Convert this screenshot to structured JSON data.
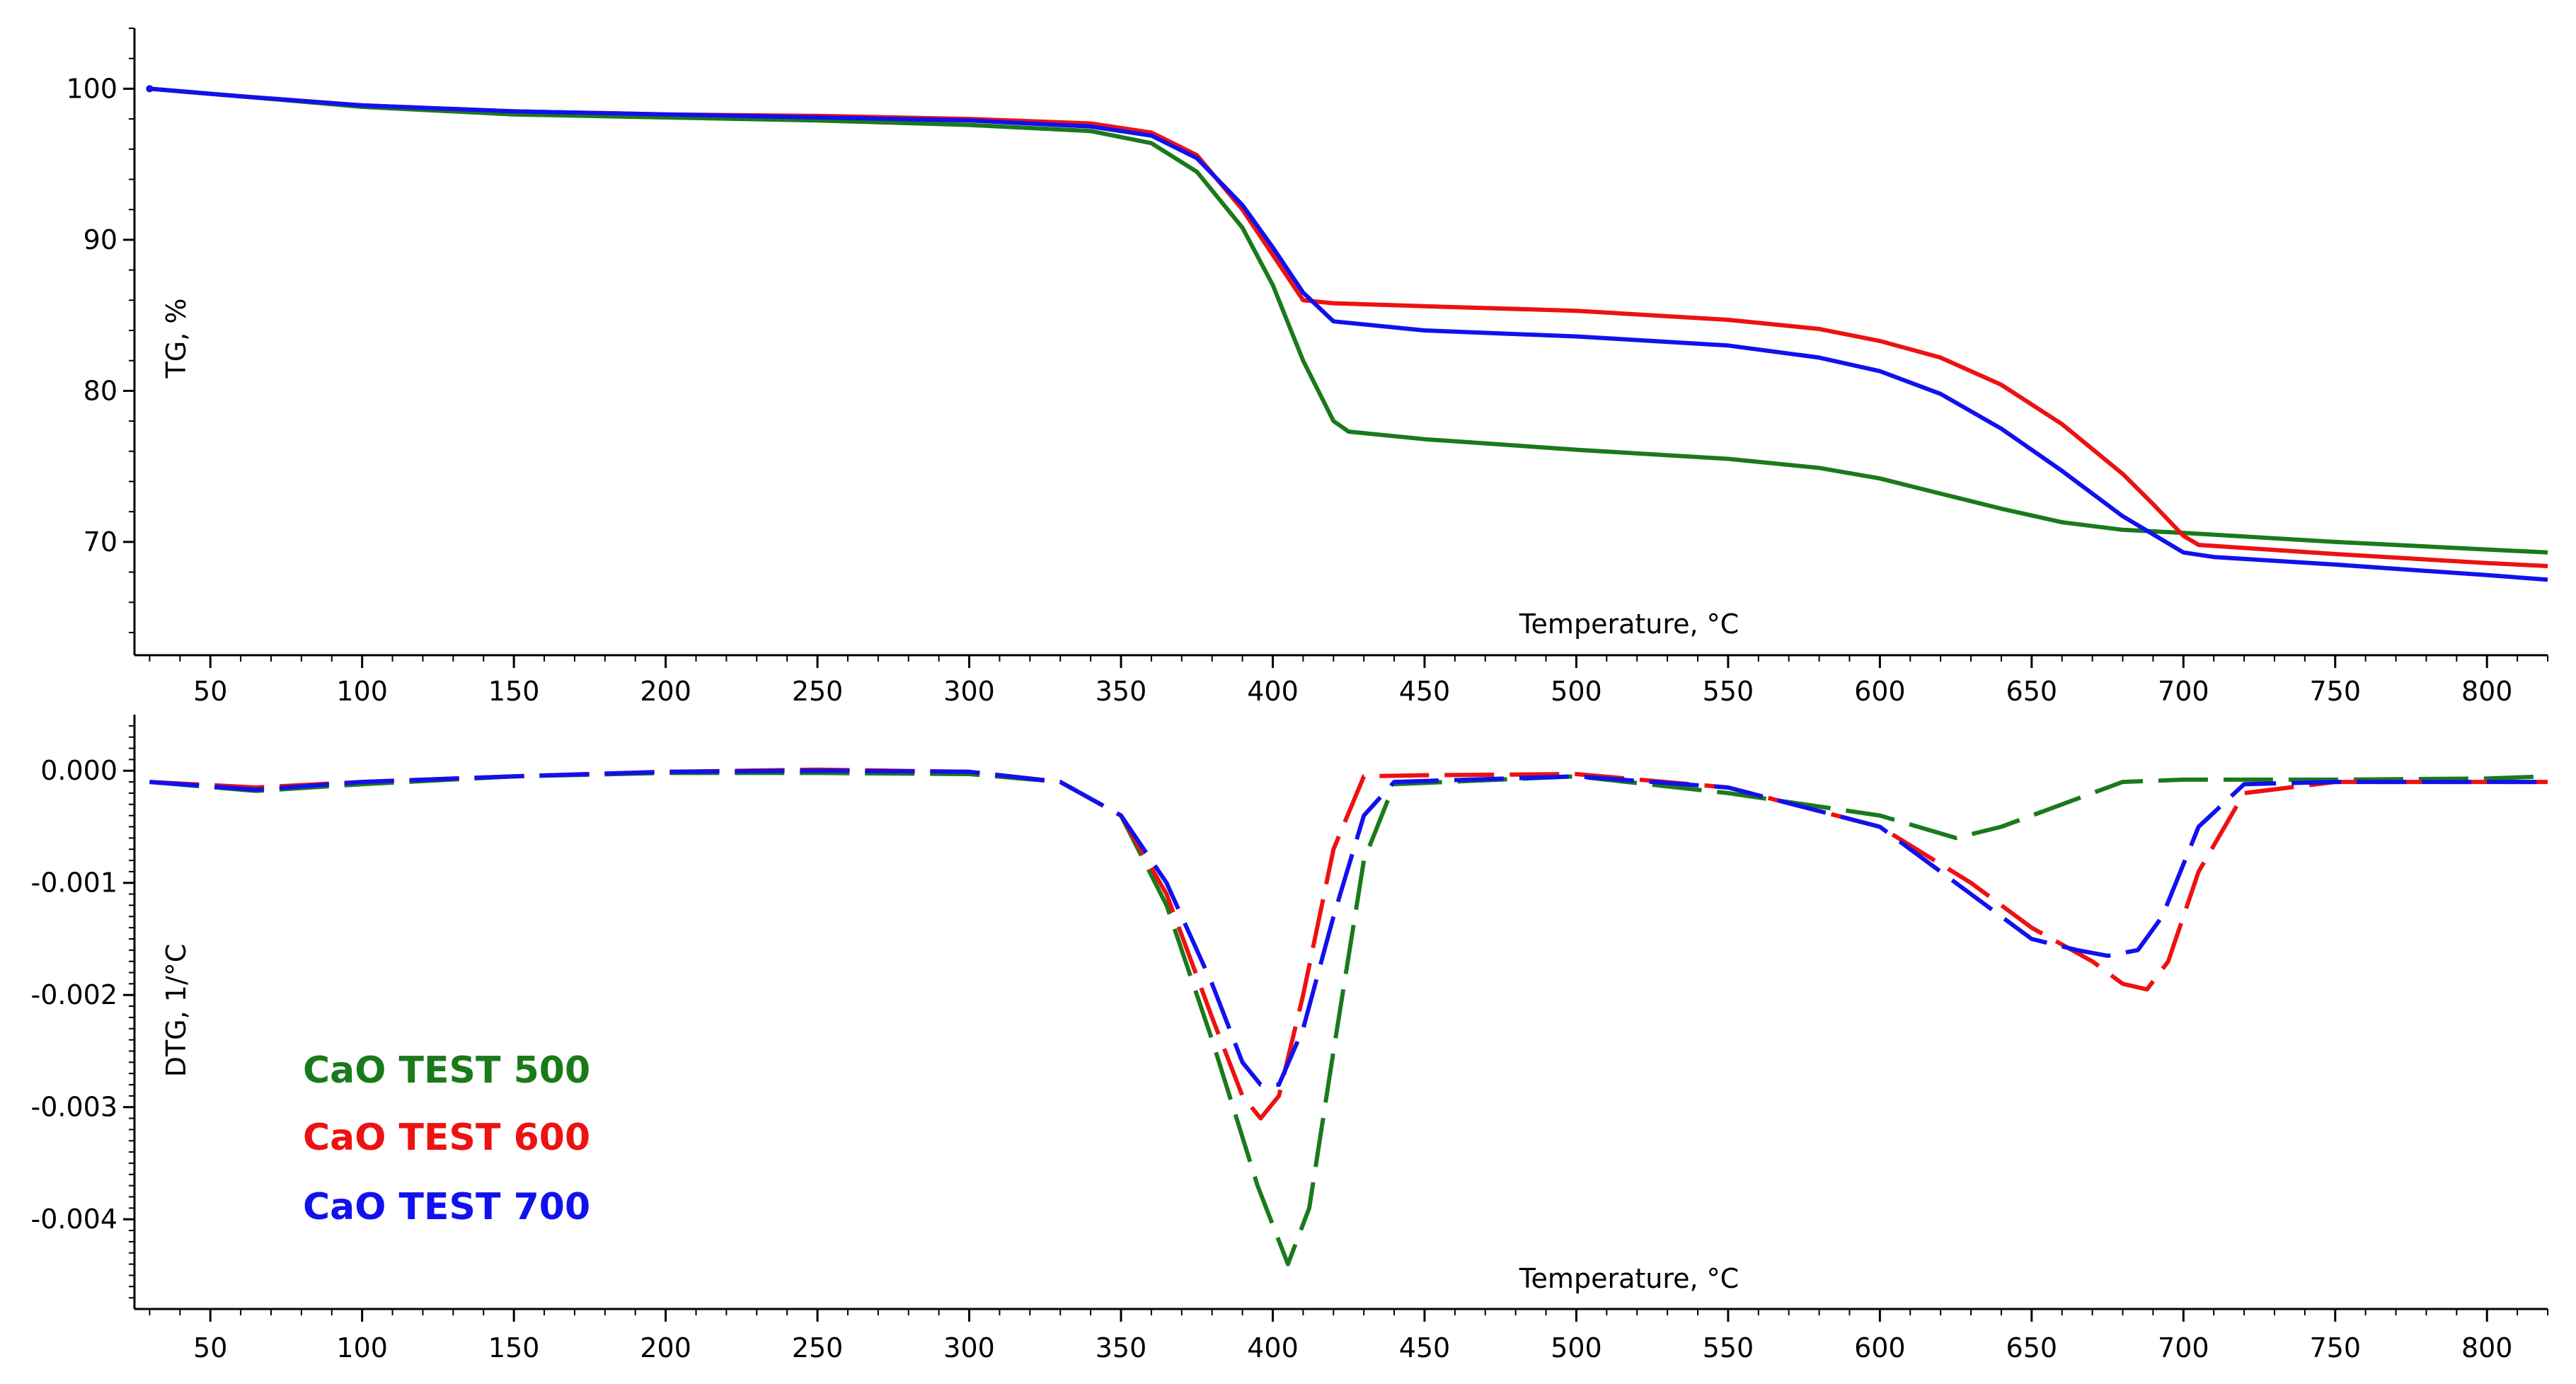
{
  "chart_data": [
    {
      "type": "line",
      "panel": "top",
      "ylabel": "TG, %",
      "xlabel": "Temperature, °C",
      "xlim": [
        25,
        820
      ],
      "ylim": [
        62.5,
        104
      ],
      "x_ticks": [
        50,
        100,
        150,
        200,
        250,
        300,
        350,
        400,
        450,
        500,
        550,
        600,
        650,
        700,
        750,
        800
      ],
      "y_ticks": [
        70,
        80,
        90,
        100
      ],
      "series": [
        {
          "name": "CaO TEST 500",
          "color": "#1a7a1a",
          "x": [
            30,
            60,
            100,
            150,
            200,
            250,
            300,
            340,
            360,
            375,
            390,
            400,
            410,
            420,
            425,
            450,
            500,
            550,
            580,
            600,
            620,
            640,
            660,
            680,
            700,
            750,
            800,
            820
          ],
          "y": [
            100,
            99.5,
            98.8,
            98.3,
            98.1,
            97.9,
            97.6,
            97.2,
            96.4,
            94.5,
            90.8,
            87,
            82,
            78,
            77.3,
            76.8,
            76.1,
            75.5,
            74.9,
            74.2,
            73.2,
            72.2,
            71.3,
            70.8,
            70.6,
            70,
            69.5,
            69.3
          ]
        },
        {
          "name": "CaO TEST 600",
          "color": "#ee1111",
          "x": [
            30,
            60,
            100,
            150,
            200,
            250,
            300,
            340,
            360,
            375,
            390,
            400,
            410,
            420,
            450,
            500,
            550,
            580,
            600,
            620,
            640,
            660,
            680,
            690,
            700,
            705,
            750,
            800,
            820
          ],
          "y": [
            100,
            99.5,
            98.9,
            98.5,
            98.3,
            98.2,
            98,
            97.7,
            97.1,
            95.6,
            92,
            89,
            86,
            85.8,
            85.6,
            85.3,
            84.7,
            84.1,
            83.3,
            82.2,
            80.4,
            77.8,
            74.5,
            72.5,
            70.4,
            69.8,
            69.2,
            68.6,
            68.4
          ]
        },
        {
          "name": "CaO TEST 700",
          "color": "#1111ee",
          "x": [
            30,
            60,
            100,
            150,
            200,
            250,
            300,
            340,
            360,
            375,
            390,
            400,
            410,
            420,
            450,
            500,
            550,
            580,
            600,
            620,
            640,
            660,
            680,
            700,
            710,
            750,
            800,
            820
          ],
          "y": [
            100,
            99.5,
            98.9,
            98.5,
            98.3,
            98.1,
            97.9,
            97.5,
            96.9,
            95.4,
            92.3,
            89.5,
            86.5,
            84.6,
            84,
            83.6,
            83,
            82.2,
            81.3,
            79.8,
            77.5,
            74.7,
            71.7,
            69.3,
            69,
            68.5,
            67.8,
            67.5
          ]
        }
      ]
    },
    {
      "type": "line",
      "panel": "bottom",
      "ylabel": "DTG, 1/°C",
      "xlabel": "Temperature, °C",
      "xlim": [
        25,
        820
      ],
      "ylim": [
        -0.0048,
        0.0005
      ],
      "x_ticks": [
        50,
        100,
        150,
        200,
        250,
        300,
        350,
        400,
        450,
        500,
        550,
        600,
        650,
        700,
        750,
        800
      ],
      "y_ticks": [
        0.0,
        -0.001,
        -0.002,
        -0.003,
        -0.004
      ],
      "y_tick_labels": [
        "0.000",
        "-0.001",
        "-0.002",
        "-0.003",
        "-0.004"
      ],
      "series": [
        {
          "name": "CaO TEST 500",
          "color": "#1a7a1a",
          "x": [
            30,
            65,
            100,
            150,
            200,
            250,
            300,
            330,
            350,
            365,
            380,
            395,
            405,
            412,
            420,
            430,
            440,
            500,
            550,
            600,
            625,
            640,
            660,
            680,
            700,
            750,
            800,
            820
          ],
          "y": [
            -0.0001,
            -0.00018,
            -0.00012,
            -5e-05,
            -2e-05,
            -2e-05,
            -3e-05,
            -0.0001,
            -0.0004,
            -0.0012,
            -0.0024,
            -0.0037,
            -0.0044,
            -0.0039,
            -0.0025,
            -0.0008,
            -0.00012,
            -5e-05,
            -0.0002,
            -0.0004,
            -0.0006,
            -0.0005,
            -0.0003,
            -0.0001,
            -8e-05,
            -8e-05,
            -7e-05,
            -5e-05
          ]
        },
        {
          "name": "CaO TEST 600",
          "color": "#ee1111",
          "x": [
            30,
            65,
            100,
            150,
            200,
            250,
            300,
            330,
            350,
            365,
            380,
            390,
            396,
            402,
            410,
            420,
            430,
            450,
            500,
            550,
            600,
            630,
            650,
            670,
            680,
            688,
            695,
            705,
            720,
            750,
            800,
            820
          ],
          "y": [
            -0.0001,
            -0.00015,
            -0.0001,
            -5e-05,
            -1e-05,
            1e-05,
            -1e-05,
            -0.0001,
            -0.0004,
            -0.0011,
            -0.0022,
            -0.0029,
            -0.0031,
            -0.0029,
            -0.002,
            -0.0007,
            -5e-05,
            -4e-05,
            -3e-05,
            -0.00015,
            -0.0005,
            -0.001,
            -0.0014,
            -0.0017,
            -0.0019,
            -0.00195,
            -0.0017,
            -0.0009,
            -0.0002,
            -0.0001,
            -0.0001,
            -0.0001
          ]
        },
        {
          "name": "CaO TEST 700",
          "color": "#1111ee",
          "x": [
            30,
            65,
            100,
            150,
            200,
            250,
            300,
            330,
            350,
            365,
            380,
            390,
            396,
            402,
            410,
            420,
            430,
            440,
            500,
            550,
            600,
            630,
            650,
            665,
            675,
            685,
            693,
            705,
            720,
            750,
            800,
            820
          ],
          "y": [
            -0.0001,
            -0.00017,
            -0.0001,
            -5e-05,
            -1e-05,
            0.0,
            -1e-05,
            -0.0001,
            -0.0004,
            -0.001,
            -0.0019,
            -0.0026,
            -0.0028,
            -0.0028,
            -0.0023,
            -0.0013,
            -0.0004,
            -0.0001,
            -5e-05,
            -0.00015,
            -0.0005,
            -0.0011,
            -0.0015,
            -0.0016,
            -0.00165,
            -0.0016,
            -0.0013,
            -0.0005,
            -0.00012,
            -0.0001,
            -0.0001,
            -0.0001
          ]
        }
      ]
    }
  ],
  "legend": [
    {
      "label": "CaO TEST 500",
      "color": "#1a7a1a"
    },
    {
      "label": "CaO TEST 600",
      "color": "#ee1111"
    },
    {
      "label": "CaO TEST 700",
      "color": "#1111ee"
    }
  ]
}
